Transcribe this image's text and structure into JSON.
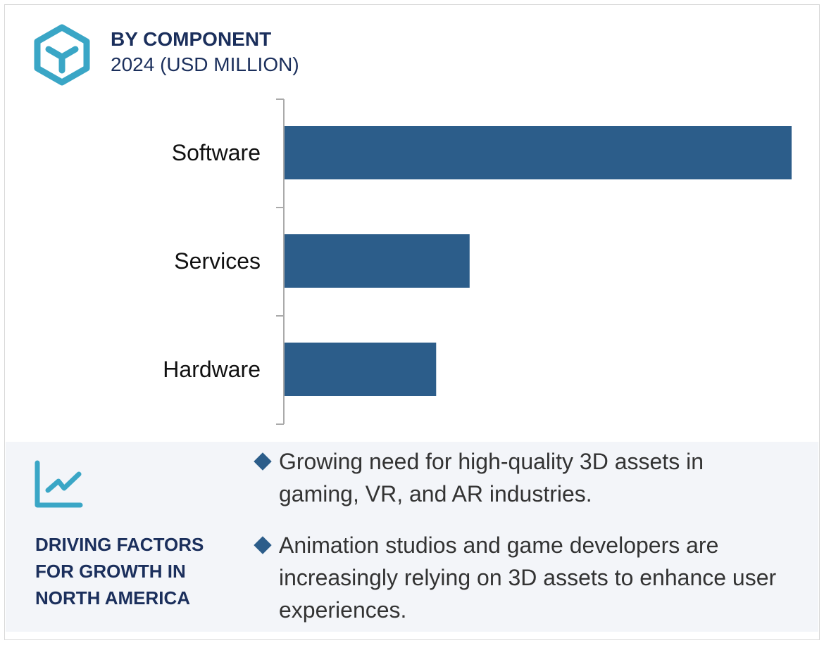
{
  "header": {
    "title": "BY COMPONENT",
    "subtitle": "2024 (USD MILLION)",
    "icon": "cube-icon"
  },
  "colors": {
    "bar": "#2c5d8a",
    "accent": "#3aa6c6",
    "heading": "#1b2f5c",
    "panel": "#f3f5f9"
  },
  "chart_data": {
    "type": "bar",
    "orientation": "horizontal",
    "title": "BY COMPONENT",
    "subtitle": "2024 (USD MILLION)",
    "categories": [
      "Software",
      "Services",
      "Hardware"
    ],
    "values": [
      100,
      36.5,
      29.9
    ],
    "value_note_relative": true,
    "xlim": [
      0,
      100
    ],
    "grid": false
  },
  "factors": {
    "icon": "trend-chart-icon",
    "heading": "DRIVING FACTORS FOR GROWTH IN NORTH AMERICA",
    "items": [
      "Growing need for high-quality 3D assets in gaming, VR, and AR industries.",
      "Animation studios and game developers are increasingly relying on 3D assets to enhance user experiences."
    ]
  }
}
